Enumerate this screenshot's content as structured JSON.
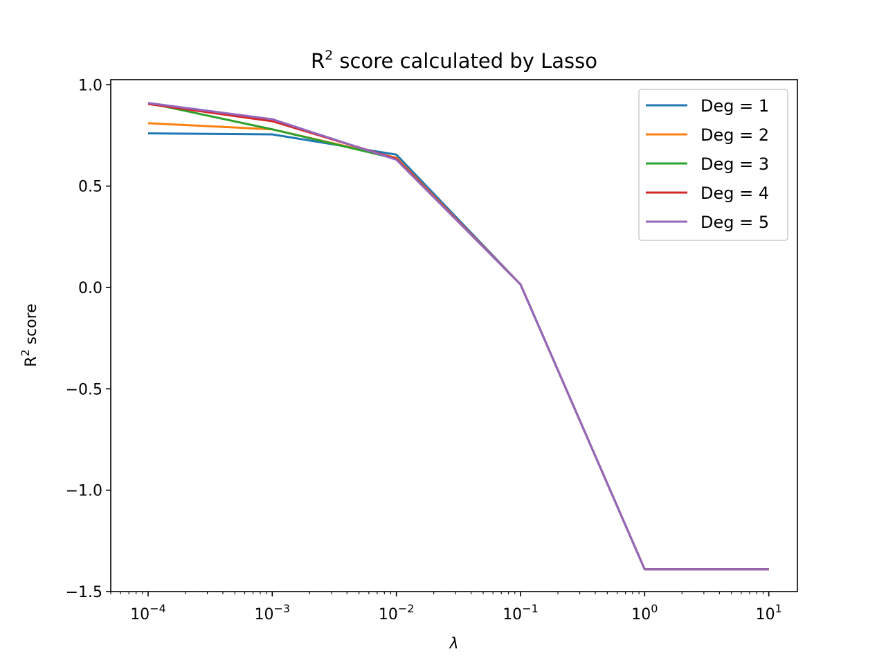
{
  "chart_data": {
    "type": "line",
    "title": "R",
    "title_superscript": "2",
    "title_suffix": " score calculated by Lasso",
    "xlabel": "λ",
    "ylabel": "R",
    "ylabel_superscript": "2",
    "ylabel_suffix": " score",
    "x_scale": "log",
    "x": [
      0.0001,
      0.001,
      0.01,
      0.1,
      1,
      10
    ],
    "x_ticks": [
      {
        "value": 0.0001,
        "base": "10",
        "exp": "−4"
      },
      {
        "value": 0.001,
        "base": "10",
        "exp": "−3"
      },
      {
        "value": 0.01,
        "base": "10",
        "exp": "−2"
      },
      {
        "value": 0.1,
        "base": "10",
        "exp": "−1"
      },
      {
        "value": 1,
        "base": "10",
        "exp": "0"
      },
      {
        "value": 10,
        "base": "10",
        "exp": "1"
      }
    ],
    "xlim": [
      5e-05,
      17
    ],
    "ylim": [
      -1.5,
      1.025
    ],
    "y_ticks": [
      {
        "value": 1.0,
        "label": "1.0"
      },
      {
        "value": 0.5,
        "label": "0.5"
      },
      {
        "value": 0.0,
        "label": "0.0"
      },
      {
        "value": -0.5,
        "label": "−0.5"
      },
      {
        "value": -1.0,
        "label": "−1.0"
      },
      {
        "value": -1.5,
        "label": "−1.5"
      }
    ],
    "grid": false,
    "legend_position": "top-right",
    "series": [
      {
        "name": "Deg = 1",
        "color": "#1f77b4",
        "values": [
          0.76,
          0.755,
          0.655,
          0.015,
          -1.39,
          -1.39
        ]
      },
      {
        "name": "Deg = 2",
        "color": "#ff7f0e",
        "values": [
          0.81,
          0.78,
          0.64,
          0.015,
          -1.39,
          -1.39
        ]
      },
      {
        "name": "Deg = 3",
        "color": "#2ca02c",
        "values": [
          0.91,
          0.78,
          0.635,
          0.015,
          -1.39,
          -1.39
        ]
      },
      {
        "name": "Deg = 4",
        "color": "#d62728",
        "values": [
          0.905,
          0.82,
          0.635,
          0.015,
          -1.39,
          -1.39
        ]
      },
      {
        "name": "Deg = 5",
        "color": "#9467bd",
        "values": [
          0.91,
          0.83,
          0.63,
          0.015,
          -1.39,
          -1.39
        ]
      }
    ]
  }
}
